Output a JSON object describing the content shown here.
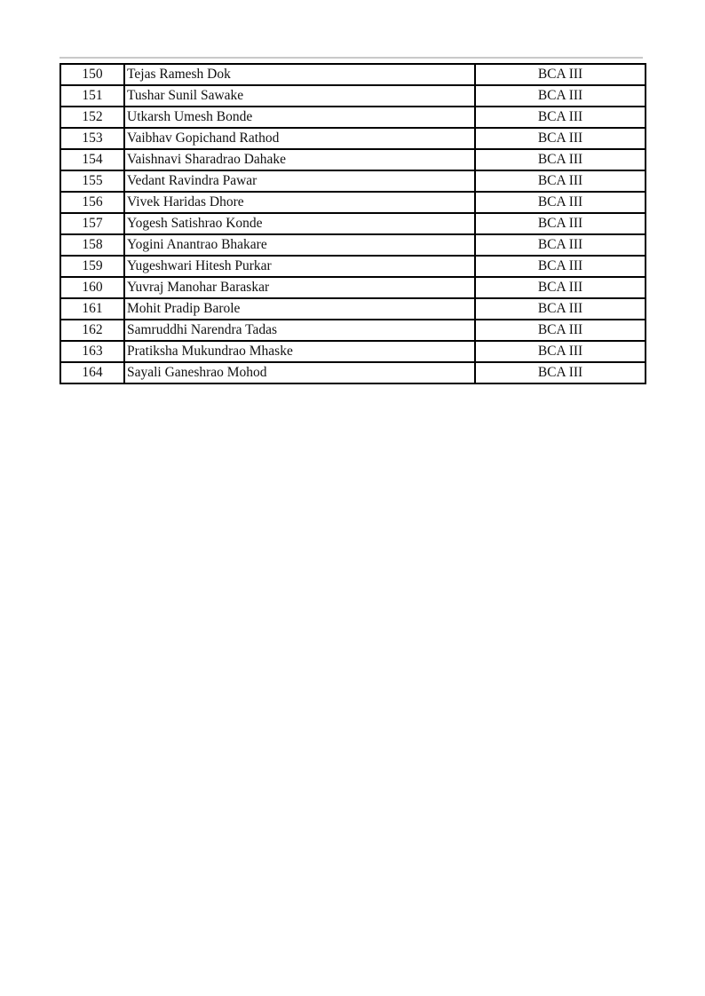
{
  "page": {
    "background_color": "#ffffff",
    "text_color": "#111111",
    "table_border_color": "#000000",
    "artifact_line_color": "#c9c9c9"
  },
  "table": {
    "class_label_common": "BCA III",
    "rows": [
      {
        "roll": "150",
        "name": "Tejas Ramesh Dok",
        "class_label": "BCA III"
      },
      {
        "roll": "151",
        "name": "Tushar Sunil Sawake",
        "class_label": "BCA III"
      },
      {
        "roll": "152",
        "name": "Utkarsh Umesh Bonde",
        "class_label": "BCA III"
      },
      {
        "roll": "153",
        "name": "Vaibhav Gopichand Rathod",
        "class_label": "BCA III"
      },
      {
        "roll": "154",
        "name": "Vaishnavi Sharadrao Dahake",
        "class_label": "BCA III"
      },
      {
        "roll": "155",
        "name": "Vedant Ravindra Pawar",
        "class_label": "BCA III"
      },
      {
        "roll": "156",
        "name": "Vivek Haridas Dhore",
        "class_label": "BCA III"
      },
      {
        "roll": "157",
        "name": "Yogesh Satishrao Konde",
        "class_label": "BCA III"
      },
      {
        "roll": "158",
        "name": "Yogini Anantrao Bhakare",
        "class_label": "BCA III"
      },
      {
        "roll": "159",
        "name": "Yugeshwari Hitesh Purkar",
        "class_label": "BCA III"
      },
      {
        "roll": "160",
        "name": "Yuvraj Manohar Baraskar",
        "class_label": "BCA III"
      },
      {
        "roll": "161",
        "name": "Mohit Pradip Barole",
        "class_label": "BCA III"
      },
      {
        "roll": "162",
        "name": "Samruddhi Narendra Tadas",
        "class_label": "BCA III"
      },
      {
        "roll": "163",
        "name": "Pratiksha Mukundrao Mhaske",
        "class_label": "BCA III"
      },
      {
        "roll": "164",
        "name": "Sayali Ganeshrao Mohod",
        "class_label": "BCA III"
      }
    ]
  }
}
